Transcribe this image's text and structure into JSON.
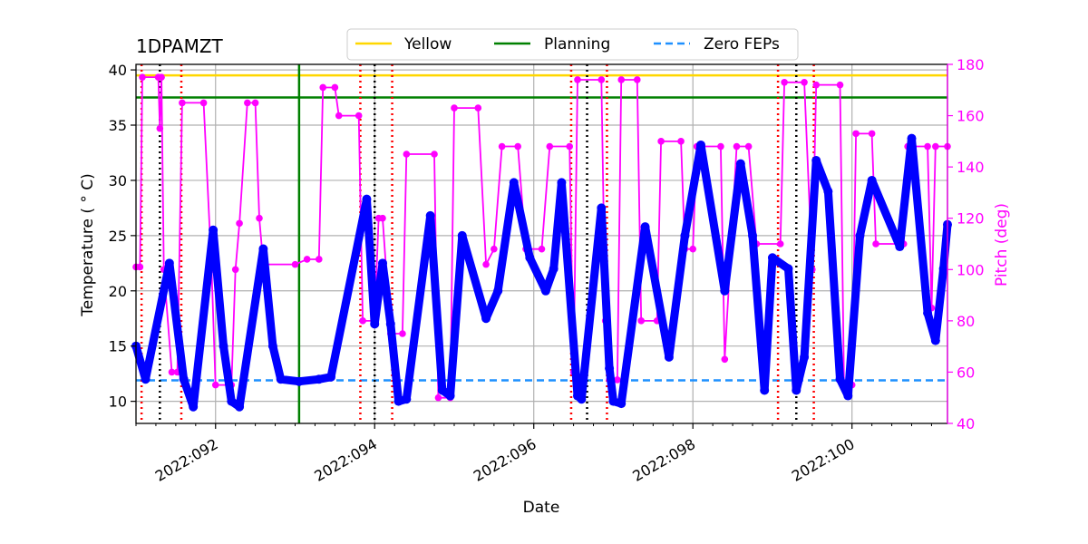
{
  "chart_data": {
    "type": "line",
    "title": "1DPAMZT",
    "xlabel": "Date",
    "ylabel": "Temperature ($^\\circ$C)",
    "ylabel_display": "Temperature ( ° C)",
    "y2label": "Pitch (deg)",
    "xlim": [
      91.0,
      101.2
    ],
    "ylim": [
      8,
      40.5
    ],
    "y2lim": [
      40,
      180
    ],
    "x_ticks": [
      {
        "value": 92,
        "label": "2022:092"
      },
      {
        "value": 94,
        "label": "2022:094"
      },
      {
        "value": 96,
        "label": "2022:096"
      },
      {
        "value": 98,
        "label": "2022:098"
      },
      {
        "value": 100,
        "label": "2022:100"
      }
    ],
    "y_ticks": [
      10,
      15,
      20,
      25,
      30,
      35,
      40
    ],
    "y2_ticks": [
      40,
      60,
      80,
      100,
      120,
      140,
      160,
      180
    ],
    "grid": true,
    "legend": {
      "placement": "top-center",
      "entries": [
        {
          "label": "Yellow",
          "color": "#ffd700",
          "style": "solid"
        },
        {
          "label": "Planning",
          "color": "#008000",
          "style": "solid"
        },
        {
          "label": "Zero FEPs",
          "color": "#1e90ff",
          "style": "dashed"
        }
      ]
    },
    "limits": {
      "yellow": 39.5,
      "planning": 37.5,
      "zero_feps": 11.9
    },
    "planning_vline_x": 93.05,
    "red_dotted_vlines": [
      91.07,
      91.57,
      93.82,
      94.22,
      96.47,
      96.92,
      99.07,
      99.52
    ],
    "black_dotted_vlines": [
      91.3,
      94.0,
      96.67,
      99.3
    ],
    "series": [
      {
        "name": "1DPAMZT",
        "axis": "left",
        "color": "#0000ff",
        "points": [
          [
            91.0,
            15.0
          ],
          [
            91.12,
            12.0
          ],
          [
            91.42,
            22.5
          ],
          [
            91.6,
            12.0
          ],
          [
            91.72,
            9.5
          ],
          [
            91.97,
            25.5
          ],
          [
            92.1,
            15.0
          ],
          [
            92.2,
            10.0
          ],
          [
            92.3,
            9.5
          ],
          [
            92.6,
            23.8
          ],
          [
            92.72,
            15.0
          ],
          [
            92.82,
            12.0
          ],
          [
            93.05,
            11.8
          ],
          [
            93.3,
            12.0
          ],
          [
            93.45,
            12.2
          ],
          [
            93.9,
            28.3
          ],
          [
            94.0,
            17.0
          ],
          [
            94.1,
            22.5
          ],
          [
            94.2,
            17.0
          ],
          [
            94.3,
            10.0
          ],
          [
            94.4,
            10.2
          ],
          [
            94.7,
            26.8
          ],
          [
            94.85,
            11.0
          ],
          [
            94.95,
            10.5
          ],
          [
            95.1,
            25.0
          ],
          [
            95.4,
            17.5
          ],
          [
            95.55,
            20.0
          ],
          [
            95.75,
            29.8
          ],
          [
            95.95,
            23.0
          ],
          [
            96.15,
            20.0
          ],
          [
            96.25,
            22.0
          ],
          [
            96.35,
            29.8
          ],
          [
            96.55,
            10.5
          ],
          [
            96.6,
            10.2
          ],
          [
            96.85,
            27.5
          ],
          [
            96.95,
            13.0
          ],
          [
            97.0,
            10.0
          ],
          [
            97.1,
            9.8
          ],
          [
            97.4,
            25.8
          ],
          [
            97.7,
            14.0
          ],
          [
            97.9,
            25.0
          ],
          [
            98.1,
            33.2
          ],
          [
            98.4,
            20.0
          ],
          [
            98.6,
            31.5
          ],
          [
            98.75,
            25.0
          ],
          [
            98.9,
            11.0
          ],
          [
            99.0,
            23.0
          ],
          [
            99.2,
            22.0
          ],
          [
            99.3,
            11.0
          ],
          [
            99.4,
            14.0
          ],
          [
            99.55,
            31.8
          ],
          [
            99.7,
            29.0
          ],
          [
            99.85,
            12.0
          ],
          [
            99.95,
            10.5
          ],
          [
            100.1,
            25.0
          ],
          [
            100.25,
            30.0
          ],
          [
            100.6,
            24.0
          ],
          [
            100.75,
            33.8
          ],
          [
            100.95,
            18.0
          ],
          [
            101.05,
            15.5
          ],
          [
            101.15,
            22.0
          ],
          [
            101.2,
            26.0
          ]
        ]
      },
      {
        "name": "Pitch",
        "axis": "right",
        "color": "#ff00ff",
        "points": [
          [
            91.0,
            101
          ],
          [
            91.05,
            101
          ],
          [
            91.08,
            175
          ],
          [
            91.28,
            175
          ],
          [
            91.3,
            155
          ],
          [
            91.32,
            175
          ],
          [
            91.35,
            100
          ],
          [
            91.45,
            60
          ],
          [
            91.52,
            60
          ],
          [
            91.58,
            165
          ],
          [
            91.85,
            165
          ],
          [
            91.95,
            100
          ],
          [
            92.0,
            55
          ],
          [
            92.2,
            55
          ],
          [
            92.25,
            100
          ],
          [
            92.3,
            118
          ],
          [
            92.4,
            165
          ],
          [
            92.5,
            165
          ],
          [
            92.55,
            120
          ],
          [
            92.6,
            102
          ],
          [
            93.0,
            102
          ],
          [
            93.15,
            104
          ],
          [
            93.3,
            104
          ],
          [
            93.35,
            171
          ],
          [
            93.5,
            171
          ],
          [
            93.55,
            160
          ],
          [
            93.8,
            160
          ],
          [
            93.85,
            80
          ],
          [
            94.0,
            80
          ],
          [
            94.05,
            120
          ],
          [
            94.1,
            120
          ],
          [
            94.2,
            75
          ],
          [
            94.35,
            75
          ],
          [
            94.4,
            145
          ],
          [
            94.75,
            145
          ],
          [
            94.8,
            50
          ],
          [
            94.95,
            50
          ],
          [
            95.0,
            163
          ],
          [
            95.3,
            163
          ],
          [
            95.4,
            102
          ],
          [
            95.5,
            108
          ],
          [
            95.6,
            148
          ],
          [
            95.8,
            148
          ],
          [
            95.9,
            108
          ],
          [
            96.1,
            108
          ],
          [
            96.2,
            148
          ],
          [
            96.45,
            148
          ],
          [
            96.5,
            60
          ],
          [
            96.55,
            174
          ],
          [
            96.85,
            174
          ],
          [
            96.9,
            80
          ],
          [
            96.95,
            57
          ],
          [
            97.05,
            57
          ],
          [
            97.1,
            174
          ],
          [
            97.3,
            174
          ],
          [
            97.35,
            80
          ],
          [
            97.55,
            80
          ],
          [
            97.6,
            150
          ],
          [
            97.85,
            150
          ],
          [
            97.9,
            108
          ],
          [
            98.0,
            108
          ],
          [
            98.05,
            148
          ],
          [
            98.35,
            148
          ],
          [
            98.4,
            65
          ],
          [
            98.55,
            148
          ],
          [
            98.7,
            148
          ],
          [
            98.8,
            110
          ],
          [
            99.1,
            110
          ],
          [
            99.15,
            173
          ],
          [
            99.4,
            173
          ],
          [
            99.5,
            100
          ],
          [
            99.55,
            172
          ],
          [
            99.85,
            172
          ],
          [
            99.9,
            55
          ],
          [
            100.0,
            55
          ],
          [
            100.05,
            153
          ],
          [
            100.25,
            153
          ],
          [
            100.3,
            110
          ],
          [
            100.65,
            110
          ],
          [
            100.7,
            148
          ],
          [
            100.95,
            148
          ],
          [
            101.0,
            85
          ],
          [
            101.05,
            148
          ],
          [
            101.2,
            148
          ]
        ]
      }
    ]
  }
}
